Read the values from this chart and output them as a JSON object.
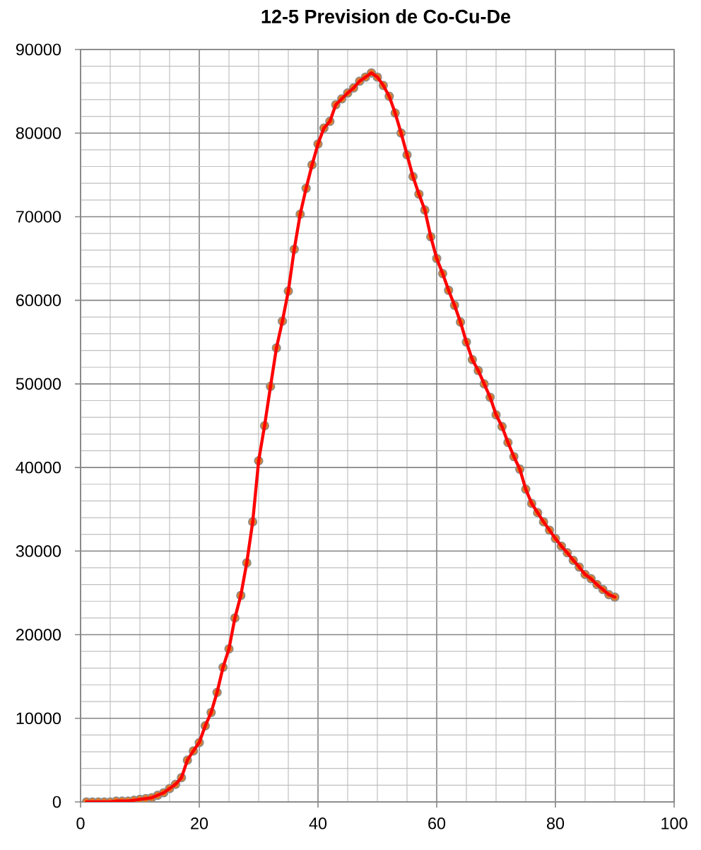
{
  "chart_data": {
    "type": "line",
    "title": "12-5 Prevision de Co-Cu-De",
    "x": [
      1,
      2,
      3,
      4,
      5,
      6,
      7,
      8,
      9,
      10,
      11,
      12,
      13,
      14,
      15,
      16,
      17,
      18,
      19,
      20,
      21,
      22,
      23,
      24,
      25,
      26,
      27,
      28,
      29,
      30,
      31,
      32,
      33,
      34,
      35,
      36,
      37,
      38,
      39,
      40,
      41,
      42,
      43,
      44,
      45,
      46,
      47,
      48,
      49,
      50,
      51,
      52,
      53,
      54,
      55,
      56,
      57,
      58,
      59,
      60,
      61,
      62,
      63,
      64,
      65,
      66,
      67,
      68,
      69,
      70,
      71,
      72,
      73,
      74,
      75,
      76,
      77,
      78,
      79,
      80,
      81,
      82,
      83,
      84,
      85,
      86,
      87,
      88,
      89,
      90
    ],
    "series": [
      {
        "color": "#ff0000",
        "values": [
          0,
          0,
          0,
          0,
          0,
          100,
          100,
          100,
          200,
          300,
          400,
          500,
          800,
          1100,
          1600,
          2100,
          2900,
          5000,
          6100,
          7100,
          9100,
          10700,
          13100,
          16100,
          18300,
          22000,
          24700,
          28600,
          33500,
          40800,
          45000,
          49700,
          54300,
          57500,
          61100,
          66100,
          70300,
          73400,
          76200,
          78700,
          80600,
          81400,
          83400,
          84100,
          84800,
          85400,
          86200,
          86700,
          87200,
          86700,
          85700,
          84400,
          82400,
          80000,
          77400,
          74800,
          72700,
          70800,
          67600,
          65000,
          63200,
          61200,
          59400,
          57400,
          55000,
          52900,
          51600,
          50000,
          48400,
          46300,
          44900,
          43000,
          41300,
          39800,
          37400,
          35700,
          34600,
          33500,
          32500,
          31500,
          30600,
          29800,
          28900,
          28100,
          27200,
          26700,
          26000,
          25400,
          24800,
          24500
        ]
      }
    ],
    "xlim": [
      0,
      100
    ],
    "xticks": [
      0,
      20,
      40,
      60,
      80,
      100
    ],
    "ylim": [
      0,
      90000
    ],
    "yticks": [
      0,
      10000,
      20000,
      30000,
      40000,
      50000,
      60000,
      70000,
      80000,
      90000
    ],
    "grid": true,
    "marker": "circle",
    "line_style": "solid"
  }
}
